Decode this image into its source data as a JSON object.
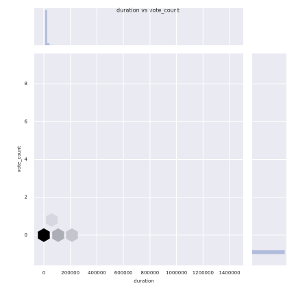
{
  "chart_data": {
    "type": "hexbin",
    "title": "duration vs vote_count",
    "xlabel": "duration",
    "ylabel": "vote_count",
    "xlim": [
      -72000,
      1503000
    ],
    "xticks": [
      0,
      200000,
      400000,
      600000,
      800000,
      1000000,
      1200000,
      1400000
    ],
    "ylim": [
      -1.6,
      9.6
    ],
    "yticks": [
      0,
      2,
      4,
      6,
      8
    ],
    "grid": true,
    "color": "#000000",
    "hist_color": "#b0bcdb",
    "hexbins": {
      "x": [
        0,
        108000,
        212000,
        60000
      ],
      "y": [
        0,
        0,
        0,
        0.8
      ],
      "counts": [
        1000,
        60,
        20,
        4
      ]
    },
    "x_hist": {
      "bins": [
        10000,
        25000,
        40000,
        55000
      ],
      "counts": [
        1000,
        60,
        15
      ],
      "lim": [
        0,
        1050
      ]
    },
    "y_hist": {
      "bins": [
        -1.0,
        -0.8
      ],
      "counts": [
        1000
      ],
      "lim": [
        0,
        1050
      ]
    }
  }
}
